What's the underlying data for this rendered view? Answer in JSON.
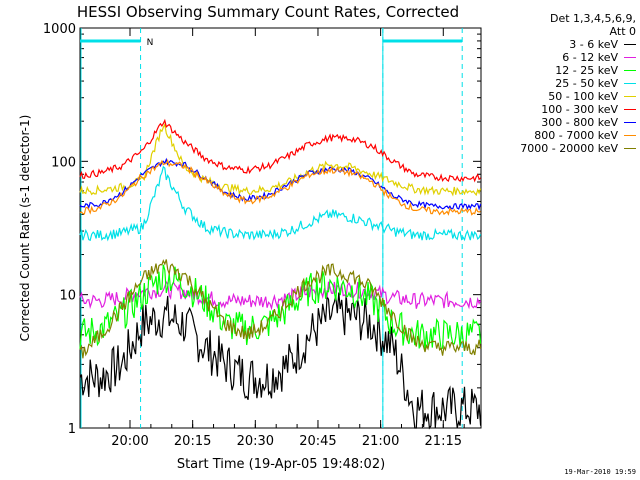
{
  "chart_data": {
    "type": "line",
    "title": "HESSI Observing Summary Count Rates, Corrected",
    "xlabel": "Start Time (19-Apr-05 19:48:02)",
    "ylabel": "Corrected Count Rate (s-1 detector-1)",
    "yscale": "log",
    "ylim": [
      1,
      1000
    ],
    "xlim_minutes": [
      0,
      96
    ],
    "ytick_labels": [
      "1",
      "10",
      "100",
      "1000"
    ],
    "xtick_labels": [
      "20:00",
      "20:15",
      "20:30",
      "20:45",
      "21:00",
      "21:15"
    ],
    "legend_header": [
      "Det 1,3,4,5,6,9,",
      "Att 0"
    ],
    "annotation": "N",
    "footer": "19-Mar-2010 19:59",
    "series": [
      {
        "name": "3 - 6 keV",
        "color": "#000000",
        "values": [
          2.4,
          2.4,
          3,
          6,
          7,
          6,
          4,
          3,
          2.4,
          2.4,
          3,
          5,
          7,
          7,
          6,
          4,
          1.4,
          1.4,
          1.4,
          1.4,
          1.4
        ]
      },
      {
        "name": "6 - 12 keV",
        "color": "#e020e0",
        "values": [
          9,
          9,
          9.5,
          10.5,
          11,
          10.5,
          9.5,
          9,
          9,
          9,
          9.5,
          10.5,
          11,
          11,
          10.5,
          9.5,
          9,
          9,
          9,
          9,
          9
        ]
      },
      {
        "name": "12 - 25 keV",
        "color": "#00ff00",
        "values": [
          5,
          5.5,
          7,
          10,
          14,
          12,
          9,
          6,
          5.5,
          6,
          8,
          11,
          12,
          11,
          9,
          6,
          5,
          5,
          5,
          5,
          5
        ]
      },
      {
        "name": "25 - 50 keV",
        "color": "#00e0e8",
        "values": [
          28,
          28,
          29,
          32,
          85,
          45,
          32,
          29,
          28,
          28,
          30,
          35,
          40,
          38,
          34,
          30,
          28,
          28,
          28,
          28,
          28
        ]
      },
      {
        "name": "50 - 100 keV",
        "color": "#e0d000",
        "values": [
          60,
          61,
          64,
          72,
          190,
          90,
          72,
          64,
          60,
          62,
          70,
          85,
          95,
          90,
          80,
          70,
          62,
          60,
          60,
          60,
          60
        ]
      },
      {
        "name": "100 - 300 keV",
        "color": "#ff0000",
        "values": [
          78,
          82,
          92,
          120,
          200,
          140,
          105,
          90,
          86,
          92,
          110,
          135,
          150,
          148,
          130,
          100,
          80,
          76,
          75,
          75,
          75
        ]
      },
      {
        "name": "300 - 800 keV",
        "color": "#0000ff",
        "values": [
          46,
          48,
          58,
          80,
          100,
          95,
          75,
          58,
          52,
          56,
          68,
          82,
          88,
          85,
          72,
          55,
          48,
          46,
          46,
          46,
          46
        ]
      },
      {
        "name": "800 - 7000 keV",
        "color": "#ff8c00",
        "values": [
          42,
          45,
          55,
          78,
          98,
          92,
          72,
          56,
          50,
          54,
          65,
          80,
          86,
          82,
          70,
          52,
          44,
          42,
          42,
          42,
          42
        ]
      },
      {
        "name": "7000 - 20000 keV",
        "color": "#808000",
        "values": [
          3.5,
          5,
          8,
          13,
          17,
          14,
          9,
          6,
          5,
          6,
          9,
          13,
          15,
          14,
          11,
          7,
          4.5,
          4,
          4,
          4,
          4
        ]
      }
    ],
    "x_minutes": [
      0,
      5,
      10,
      15,
      20,
      25,
      30,
      35,
      40,
      45,
      50,
      55,
      60,
      65,
      70,
      75,
      80,
      85,
      90,
      93,
      96
    ],
    "night_intervals_minutes": [
      [
        0,
        14.5
      ],
      [
        72.5,
        91.5
      ]
    ],
    "saa_dashed_lines_minutes": [
      14.5,
      72.5,
      91.5
    ]
  }
}
